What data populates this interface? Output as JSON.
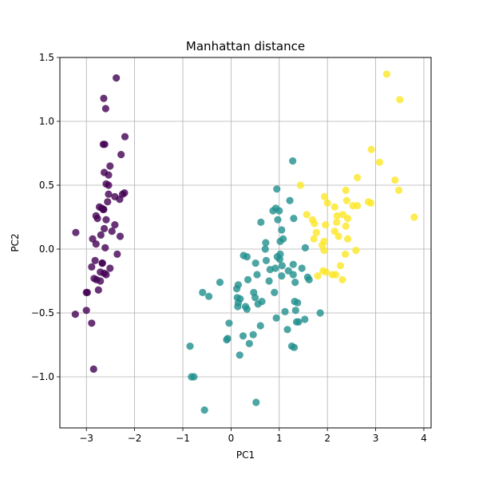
{
  "chart_data": {
    "type": "scatter",
    "title": "Manhattan distance",
    "xlabel": "PC1",
    "ylabel": "PC2",
    "xlim": [
      -3.55,
      4.15
    ],
    "ylim": [
      -1.4,
      1.5
    ],
    "xticks": [
      -3,
      -2,
      -1,
      0,
      1,
      2,
      3,
      4
    ],
    "xtick_labels": [
      "−3",
      "−2",
      "−1",
      "0",
      "1",
      "2",
      "3",
      "4"
    ],
    "yticks": [
      -1.0,
      -0.5,
      0.0,
      0.5,
      1.0,
      1.5
    ],
    "ytick_labels": [
      "−1.0",
      "−0.5",
      "0.0",
      "0.5",
      "1.0",
      "1.5"
    ],
    "grid": true,
    "legend": false,
    "colors": {
      "cluster_0": "#440154",
      "cluster_1": "#21908d",
      "cluster_2": "#fde725",
      "grid": "#b0b0b0"
    },
    "series": [
      {
        "color": "#440154",
        "points": [
          [
            -2.68,
            0.32
          ],
          [
            -2.71,
            -0.18
          ],
          [
            -2.89,
            -0.14
          ],
          [
            -2.75,
            -0.32
          ],
          [
            -2.73,
            0.33
          ],
          [
            -2.28,
            0.74
          ],
          [
            -2.82,
            -0.09
          ],
          [
            -2.63,
            0.16
          ],
          [
            -2.89,
            -0.58
          ],
          [
            -2.67,
            -0.11
          ],
          [
            -2.51,
            0.65
          ],
          [
            -2.61,
            0.01
          ],
          [
            -2.79,
            -0.24
          ],
          [
            -3.23,
            -0.51
          ],
          [
            -2.64,
            1.18
          ],
          [
            -2.38,
            1.34
          ],
          [
            -2.62,
            0.82
          ],
          [
            -2.65,
            0.31
          ],
          [
            -2.2,
            0.88
          ],
          [
            -2.59,
            0.51
          ],
          [
            -2.31,
            0.39
          ],
          [
            -2.54,
            0.43
          ],
          [
            -3.22,
            0.13
          ],
          [
            -2.3,
            0.1
          ],
          [
            -2.36,
            -0.04
          ],
          [
            -2.51,
            -0.15
          ],
          [
            -2.47,
            0.14
          ],
          [
            -2.56,
            0.37
          ],
          [
            -2.64,
            0.31
          ],
          [
            -2.63,
            -0.19
          ],
          [
            -2.59,
            -0.2
          ],
          [
            -2.41,
            0.41
          ],
          [
            -2.65,
            0.82
          ],
          [
            -2.6,
            1.1
          ],
          [
            -2.67,
            -0.11
          ],
          [
            -2.87,
            0.08
          ],
          [
            -2.63,
            0.6
          ],
          [
            -2.8,
            0.26
          ],
          [
            -2.98,
            -0.34
          ],
          [
            -2.59,
            0.23
          ],
          [
            -2.77,
            0.24
          ],
          [
            -2.85,
            -0.94
          ],
          [
            -3.0,
            -0.34
          ],
          [
            -2.41,
            0.19
          ],
          [
            -2.21,
            0.44
          ],
          [
            -2.71,
            -0.25
          ],
          [
            -2.54,
            0.5
          ],
          [
            -2.84,
            -0.23
          ],
          [
            -2.54,
            0.58
          ],
          [
            -2.7,
            0.11
          ],
          [
            -3.0,
            -0.48
          ],
          [
            -2.25,
            0.43
          ],
          [
            -2.8,
            0.04
          ]
        ]
      },
      {
        "color": "#21908d",
        "points": [
          [
            1.28,
            0.69
          ],
          [
            0.93,
            0.32
          ],
          [
            0.18,
            -0.83
          ],
          [
            1.0,
            0.3
          ],
          [
            0.15,
            -0.28
          ],
          [
            -0.09,
            -0.71
          ],
          [
            0.35,
            -0.24
          ],
          [
            -0.59,
            -0.34
          ],
          [
            -0.85,
            -0.76
          ],
          [
            0.73,
            -0.09
          ],
          [
            -0.77,
            -1.0
          ],
          [
            0.54,
            -0.2
          ],
          [
            0.79,
            -0.25
          ],
          [
            0.12,
            -0.31
          ],
          [
            0.95,
            0.47
          ],
          [
            0.51,
            -0.11
          ],
          [
            0.15,
            -0.42
          ],
          [
            0.71,
            0.0
          ],
          [
            0.38,
            -0.74
          ],
          [
            0.61,
            -0.6
          ],
          [
            0.64,
            -0.41
          ],
          [
            0.14,
            -0.45
          ],
          [
            0.46,
            -0.67
          ],
          [
            0.47,
            -0.34
          ],
          [
            0.94,
            -0.54
          ],
          [
            1.06,
            -0.13
          ],
          [
            0.33,
            -0.06
          ],
          [
            -0.55,
            -1.26
          ],
          [
            -0.82,
            -1.0
          ],
          [
            -0.46,
            -0.37
          ],
          [
            0.52,
            -1.2
          ],
          [
            0.25,
            -0.68
          ],
          [
            -0.23,
            -0.26
          ],
          [
            0.3,
            -0.45
          ],
          [
            -0.04,
            -0.58
          ],
          [
            0.19,
            -0.39
          ],
          [
            0.56,
            -0.43
          ],
          [
            -0.07,
            -0.7
          ],
          [
            0.5,
            -0.38
          ],
          [
            0.9,
            -0.34
          ],
          [
            0.13,
            -0.38
          ],
          [
            0.33,
            -0.47
          ],
          [
            1.3,
            0.24
          ],
          [
            1.59,
            -0.22
          ],
          [
            1.54,
            0.01
          ],
          [
            0.81,
            -0.16
          ],
          [
            1.02,
            0.06
          ],
          [
            1.05,
            -0.21
          ],
          [
            1.12,
            -0.49
          ],
          [
            1.02,
            -0.04
          ],
          [
            1.34,
            -0.48
          ],
          [
            1.38,
            -0.42
          ],
          [
            1.22,
            0.38
          ],
          [
            1.53,
            -0.55
          ],
          [
            1.31,
            -0.77
          ],
          [
            1.32,
            -0.41
          ],
          [
            1.47,
            -0.15
          ],
          [
            1.19,
            -0.17
          ],
          [
            1.17,
            -0.63
          ],
          [
            1.85,
            -0.5
          ],
          [
            1.29,
            -0.12
          ],
          [
            1.26,
            -0.76
          ],
          [
            1.36,
            -0.57
          ],
          [
            0.97,
            0.23
          ],
          [
            1.05,
            0.15
          ],
          [
            1.01,
            -0.08
          ],
          [
            1.33,
            -0.26
          ],
          [
            0.92,
            -0.15
          ],
          [
            1.29,
            -0.2
          ],
          [
            1.4,
            -0.57
          ],
          [
            1.62,
            -0.24
          ],
          [
            1.08,
            0.08
          ],
          [
            0.72,
            0.05
          ],
          [
            0.62,
            0.21
          ],
          [
            0.87,
            0.3
          ],
          [
            0.96,
            -0.06
          ],
          [
            0.26,
            -0.05
          ]
        ]
      },
      {
        "color": "#fde725",
        "points": [
          [
            1.44,
            0.5
          ],
          [
            2.53,
            0.34
          ],
          [
            2.62,
            0.56
          ],
          [
            2.91,
            0.78
          ],
          [
            3.08,
            0.68
          ],
          [
            3.5,
            1.17
          ],
          [
            3.23,
            1.37
          ],
          [
            3.4,
            0.54
          ],
          [
            3.8,
            0.25
          ],
          [
            3.48,
            0.46
          ],
          [
            2.9,
            0.36
          ],
          [
            2.85,
            0.37
          ],
          [
            2.62,
            0.34
          ],
          [
            2.38,
            0.46
          ],
          [
            2.32,
            0.27
          ],
          [
            2.15,
            0.33
          ],
          [
            2.2,
            0.26
          ],
          [
            2.4,
            0.38
          ],
          [
            2.42,
            0.24
          ],
          [
            1.57,
            0.27
          ],
          [
            1.73,
            0.2
          ],
          [
            1.94,
            0.41
          ],
          [
            1.96,
            0.19
          ],
          [
            1.72,
            0.08
          ],
          [
            2.19,
            0.21
          ],
          [
            1.69,
            0.23
          ],
          [
            2.15,
            0.14
          ],
          [
            1.93,
            0.06
          ],
          [
            1.93,
            -0.01
          ],
          [
            1.97,
            -0.18
          ],
          [
            2.42,
            0.08
          ],
          [
            2.37,
            -0.04
          ],
          [
            2.59,
            -0.01
          ],
          [
            2.31,
            -0.24
          ],
          [
            2.1,
            -0.2
          ],
          [
            1.8,
            -0.21
          ],
          [
            1.89,
            0.03
          ],
          [
            2.17,
            -0.2
          ],
          [
            1.77,
            0.13
          ],
          [
            2.0,
            0.36
          ],
          [
            2.23,
            0.1
          ],
          [
            2.27,
            -0.13
          ],
          [
            1.91,
            -0.17
          ],
          [
            2.38,
            0.18
          ]
        ]
      }
    ]
  }
}
